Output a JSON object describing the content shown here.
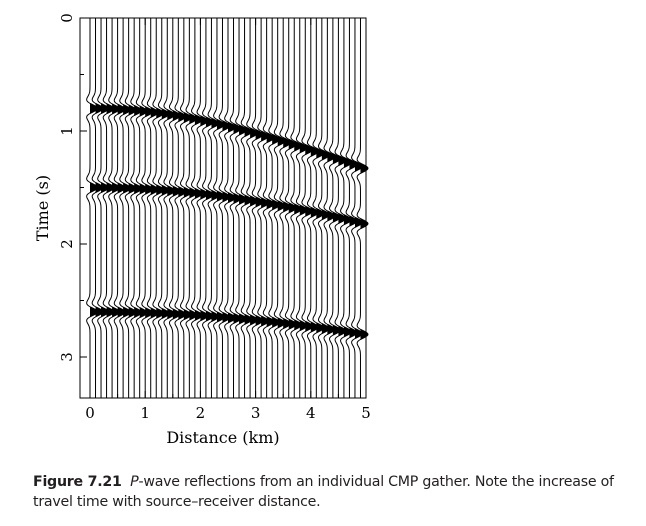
{
  "chart_data": {
    "type": "line",
    "title": "",
    "xlabel": "Distance (km)",
    "ylabel": "Time (s)",
    "xlim": [
      0,
      5
    ],
    "ylim": [
      3.4,
      0
    ],
    "y_inverted": true,
    "x_ticks": [
      "0",
      "1",
      "2",
      "3",
      "4",
      "5"
    ],
    "y_ticks": [
      "0",
      "1",
      "2",
      "3"
    ],
    "trace_offsets_km": [
      0.0,
      0.1,
      0.2,
      0.3,
      0.4,
      0.5,
      0.6,
      0.7,
      0.8,
      0.9,
      1.0,
      1.1,
      1.2,
      1.3,
      1.4,
      1.5,
      1.6,
      1.7,
      1.8,
      1.9,
      2.0,
      2.1,
      2.2,
      2.3,
      2.4,
      2.5,
      2.6,
      2.7,
      2.8,
      2.9,
      3.0,
      3.1,
      3.2,
      3.3,
      3.4,
      3.5,
      3.6,
      3.7,
      3.8,
      3.9,
      4.0,
      4.1,
      4.2,
      4.3,
      4.4,
      4.5,
      4.6,
      4.7,
      4.8,
      4.9
    ],
    "series": [
      {
        "t0": 0.8,
        "t_far": 1.33,
        "x_far": 4.9
      },
      {
        "t0": 1.5,
        "t_far": 1.82,
        "x_far": 4.9
      },
      {
        "t0": 2.6,
        "t_far": 2.8,
        "x_far": 4.9
      }
    ],
    "grid": false,
    "legend": "none"
  },
  "caption": {
    "label": "Figure 7.21",
    "italic": "P",
    "text": "-wave reflections from an individual CMP gather. Note the increase of travel time with source–receiver distance."
  }
}
